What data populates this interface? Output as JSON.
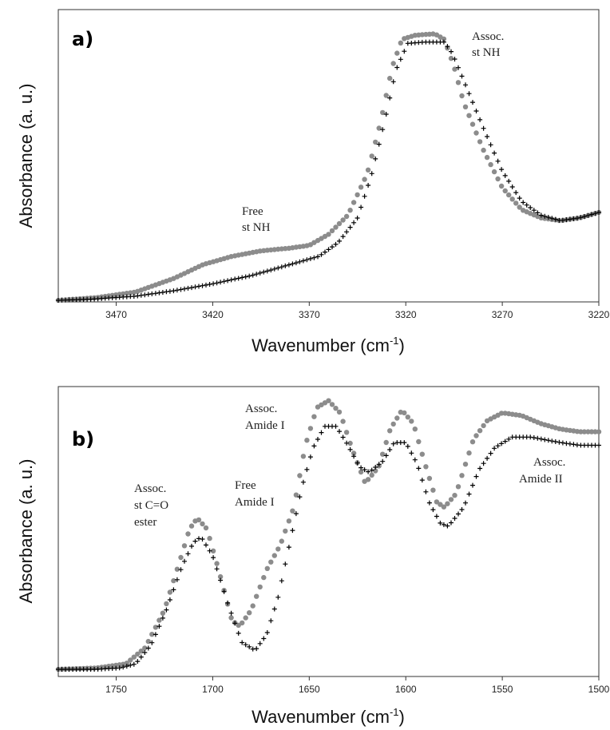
{
  "chart_data": [
    {
      "type": "scatter",
      "panel_label": "a)",
      "xlabel": "Wavenumber (cm",
      "xlabel_sup": "-1",
      "xlabel_close": ")",
      "ylabel": "Absorbance (a. u.)",
      "xlim": [
        3500,
        3220
      ],
      "ylim": [
        0,
        1
      ],
      "x_reversed": true,
      "xticks": [
        3470,
        3420,
        3370,
        3320,
        3270,
        3220
      ],
      "grid": false,
      "series": [
        {
          "marker": "circle",
          "color": "#8c8c8c",
          "points": [
            [
              3500,
              0.0
            ],
            [
              3480,
              0.01
            ],
            [
              3460,
              0.03
            ],
            [
              3440,
              0.08
            ],
            [
              3425,
              0.13
            ],
            [
              3410,
              0.16
            ],
            [
              3395,
              0.18
            ],
            [
              3380,
              0.19
            ],
            [
              3370,
              0.2
            ],
            [
              3360,
              0.24
            ],
            [
              3350,
              0.31
            ],
            [
              3340,
              0.46
            ],
            [
              3333,
              0.65
            ],
            [
              3327,
              0.85
            ],
            [
              3322,
              0.95
            ],
            [
              3315,
              0.965
            ],
            [
              3305,
              0.97
            ],
            [
              3300,
              0.95
            ],
            [
              3295,
              0.85
            ],
            [
              3290,
              0.72
            ],
            [
              3280,
              0.55
            ],
            [
              3270,
              0.41
            ],
            [
              3260,
              0.33
            ],
            [
              3250,
              0.3
            ],
            [
              3240,
              0.29
            ],
            [
              3230,
              0.3
            ],
            [
              3220,
              0.32
            ]
          ]
        },
        {
          "marker": "plus",
          "color": "#000000",
          "points": [
            [
              3500,
              0.0
            ],
            [
              3480,
              0.005
            ],
            [
              3460,
              0.015
            ],
            [
              3440,
              0.035
            ],
            [
              3420,
              0.06
            ],
            [
              3400,
              0.09
            ],
            [
              3385,
              0.12
            ],
            [
              3375,
              0.14
            ],
            [
              3365,
              0.16
            ],
            [
              3355,
              0.21
            ],
            [
              3345,
              0.3
            ],
            [
              3338,
              0.45
            ],
            [
              3331,
              0.65
            ],
            [
              3325,
              0.84
            ],
            [
              3319,
              0.935
            ],
            [
              3310,
              0.94
            ],
            [
              3300,
              0.94
            ],
            [
              3296,
              0.9
            ],
            [
              3290,
              0.8
            ],
            [
              3280,
              0.63
            ],
            [
              3270,
              0.47
            ],
            [
              3260,
              0.36
            ],
            [
              3250,
              0.31
            ],
            [
              3240,
              0.29
            ],
            [
              3230,
              0.3
            ],
            [
              3220,
              0.32
            ]
          ]
        }
      ],
      "annotations": [
        {
          "lines": [
            "Free",
            "st NH"
          ]
        },
        {
          "lines": [
            "Assoc.",
            "st NH"
          ]
        }
      ]
    },
    {
      "type": "scatter",
      "panel_label": "b)",
      "xlabel": "Wavenumber (cm",
      "xlabel_sup": "-1",
      "xlabel_close": ")",
      "ylabel": "Absorbance (a. u.)",
      "xlim": [
        1780,
        1500
      ],
      "ylim": [
        0,
        1
      ],
      "x_reversed": true,
      "xticks": [
        1750,
        1700,
        1650,
        1600,
        1550,
        1500
      ],
      "grid": false,
      "series": [
        {
          "marker": "circle",
          "color": "#8c8c8c",
          "points": [
            [
              1780,
              0.0
            ],
            [
              1760,
              0.005
            ],
            [
              1745,
              0.02
            ],
            [
              1735,
              0.08
            ],
            [
              1725,
              0.22
            ],
            [
              1718,
              0.38
            ],
            [
              1712,
              0.52
            ],
            [
              1708,
              0.56
            ],
            [
              1703,
              0.52
            ],
            [
              1697,
              0.37
            ],
            [
              1690,
              0.18
            ],
            [
              1686,
              0.16
            ],
            [
              1680,
              0.22
            ],
            [
              1672,
              0.37
            ],
            [
              1665,
              0.46
            ],
            [
              1658,
              0.6
            ],
            [
              1652,
              0.83
            ],
            [
              1646,
              0.97
            ],
            [
              1640,
              0.995
            ],
            [
              1634,
              0.95
            ],
            [
              1628,
              0.82
            ],
            [
              1621,
              0.69
            ],
            [
              1614,
              0.75
            ],
            [
              1608,
              0.89
            ],
            [
              1602,
              0.96
            ],
            [
              1596,
              0.91
            ],
            [
              1590,
              0.76
            ],
            [
              1584,
              0.62
            ],
            [
              1580,
              0.6
            ],
            [
              1574,
              0.65
            ],
            [
              1565,
              0.85
            ],
            [
              1558,
              0.92
            ],
            [
              1550,
              0.95
            ],
            [
              1540,
              0.94
            ],
            [
              1530,
              0.91
            ],
            [
              1520,
              0.89
            ],
            [
              1510,
              0.88
            ],
            [
              1500,
              0.88
            ]
          ]
        },
        {
          "marker": "plus",
          "color": "#000000",
          "points": [
            [
              1780,
              0.0
            ],
            [
              1760,
              0.0
            ],
            [
              1748,
              0.005
            ],
            [
              1740,
              0.02
            ],
            [
              1732,
              0.09
            ],
            [
              1724,
              0.22
            ],
            [
              1716,
              0.38
            ],
            [
              1710,
              0.47
            ],
            [
              1706,
              0.49
            ],
            [
              1700,
              0.42
            ],
            [
              1692,
              0.24
            ],
            [
              1685,
              0.1
            ],
            [
              1678,
              0.07
            ],
            [
              1672,
              0.13
            ],
            [
              1666,
              0.27
            ],
            [
              1660,
              0.47
            ],
            [
              1654,
              0.67
            ],
            [
              1648,
              0.82
            ],
            [
              1642,
              0.9
            ],
            [
              1636,
              0.9
            ],
            [
              1630,
              0.83
            ],
            [
              1624,
              0.75
            ],
            [
              1619,
              0.73
            ],
            [
              1612,
              0.77
            ],
            [
              1606,
              0.84
            ],
            [
              1600,
              0.84
            ],
            [
              1594,
              0.76
            ],
            [
              1588,
              0.62
            ],
            [
              1582,
              0.54
            ],
            [
              1578,
              0.53
            ],
            [
              1570,
              0.6
            ],
            [
              1562,
              0.74
            ],
            [
              1554,
              0.82
            ],
            [
              1545,
              0.86
            ],
            [
              1535,
              0.86
            ],
            [
              1520,
              0.84
            ],
            [
              1510,
              0.83
            ],
            [
              1500,
              0.83
            ]
          ]
        }
      ],
      "annotations": [
        {
          "lines": [
            "Assoc.",
            "st C=O",
            "ester"
          ]
        },
        {
          "lines": [
            "Free",
            "Amide I"
          ]
        },
        {
          "lines": [
            "Assoc.",
            "Amide I"
          ]
        },
        {
          "lines": [
            "Assoc.",
            "Amide II"
          ]
        }
      ]
    }
  ]
}
